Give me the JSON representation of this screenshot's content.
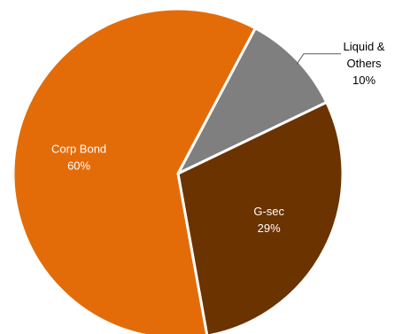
{
  "chart_data": {
    "type": "pie",
    "slices": [
      {
        "name": "Liquid & Others",
        "label_lines": [
          "Liquid &",
          "Others"
        ],
        "value": 10,
        "value_label": "10%",
        "color": "#7f7f7f",
        "label_position": "outside"
      },
      {
        "name": "G-sec",
        "label_lines": [
          "G-sec"
        ],
        "value": 29,
        "value_label": "29%",
        "color": "#6a3300",
        "label_position": "inside"
      },
      {
        "name": "Corp Bond",
        "label_lines": [
          "Corp Bond"
        ],
        "value": 60,
        "value_label": "60%",
        "color": "#e36c09",
        "label_position": "inside"
      }
    ],
    "start_angle_deg": 28,
    "direction": "clockwise",
    "slice_border_color": "#ffffff",
    "legend": "none"
  }
}
